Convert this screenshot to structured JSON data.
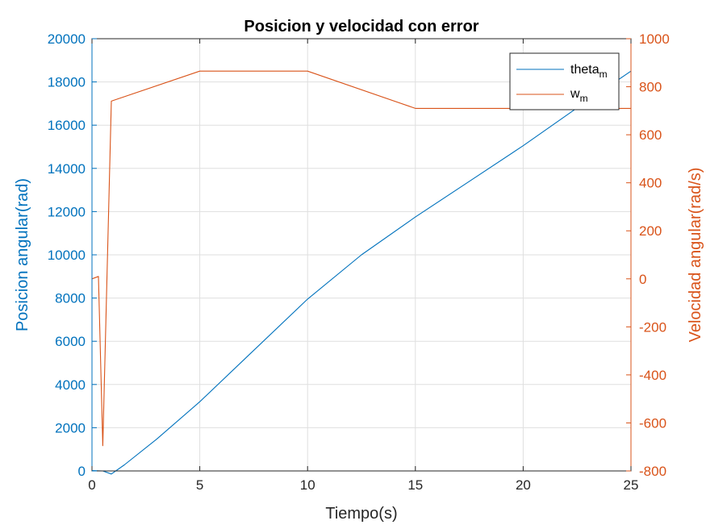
{
  "chart_data": {
    "type": "line",
    "title": "Posicion y velocidad con error",
    "xlabel": "Tiempo(s)",
    "ylabel_left": "Posicion angular(rad)",
    "ylabel_right": "Velocidad angular(rad/s)",
    "xlim": [
      0,
      25
    ],
    "ylim_left": [
      0,
      20000
    ],
    "ylim_right": [
      -800,
      1000
    ],
    "x_ticks": [
      0,
      5,
      10,
      15,
      20,
      25
    ],
    "y_left_ticks": [
      0,
      2000,
      4000,
      6000,
      8000,
      10000,
      12000,
      14000,
      16000,
      18000,
      20000
    ],
    "y_right_ticks": [
      -800,
      -600,
      -400,
      -200,
      0,
      200,
      400,
      600,
      800,
      1000
    ],
    "grid": true,
    "legend_position": "top-right",
    "colors": {
      "left_axis": "#0072BD",
      "right_axis": "#D95319"
    },
    "series": [
      {
        "name": "theta",
        "name_sub": "m",
        "axis": "left",
        "color": "#0072BD",
        "x": [
          0,
          0.5,
          0.9,
          1.5,
          3,
          5,
          7,
          10,
          12.5,
          15,
          17.5,
          20,
          22.5,
          25
        ],
        "y": [
          20,
          0,
          -140,
          280,
          1470,
          3200,
          5100,
          7950,
          10000,
          11750,
          13400,
          15050,
          16800,
          18500
        ]
      },
      {
        "name": "w",
        "name_sub": "m",
        "axis": "right",
        "color": "#D95319",
        "x": [
          0,
          0.3,
          0.5,
          0.9,
          5,
          10,
          15,
          20,
          25
        ],
        "y": [
          0,
          10,
          -695,
          740,
          865,
          865,
          710,
          710,
          710
        ]
      }
    ]
  }
}
